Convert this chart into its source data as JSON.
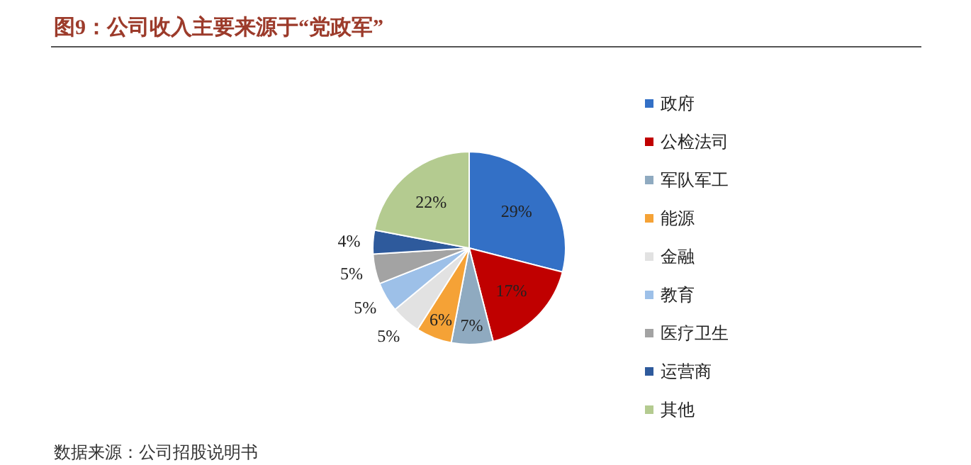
{
  "chart_data": {
    "type": "pie",
    "title": "图9：公司收入主要来源于“党政军”",
    "categories": [
      "政府",
      "公检法司",
      "军队军工",
      "能源",
      "金融",
      "教育",
      "医疗卫生",
      "运营商",
      "其他"
    ],
    "values": [
      29,
      17,
      7,
      6,
      5,
      5,
      5,
      4,
      22
    ],
    "colors": [
      "#3370c6",
      "#c00000",
      "#8faac0",
      "#f5a236",
      "#e2e2e2",
      "#9dc0e8",
      "#a3a3a3",
      "#2e5a9c",
      "#b4cb90"
    ],
    "value_labels": [
      "29%",
      "17%",
      "7%",
      "6%",
      "5%",
      "5%",
      "5%",
      "4%",
      "22%"
    ],
    "legend": "right",
    "annotations": [
      "数据来源：公司招股说明书"
    ]
  }
}
